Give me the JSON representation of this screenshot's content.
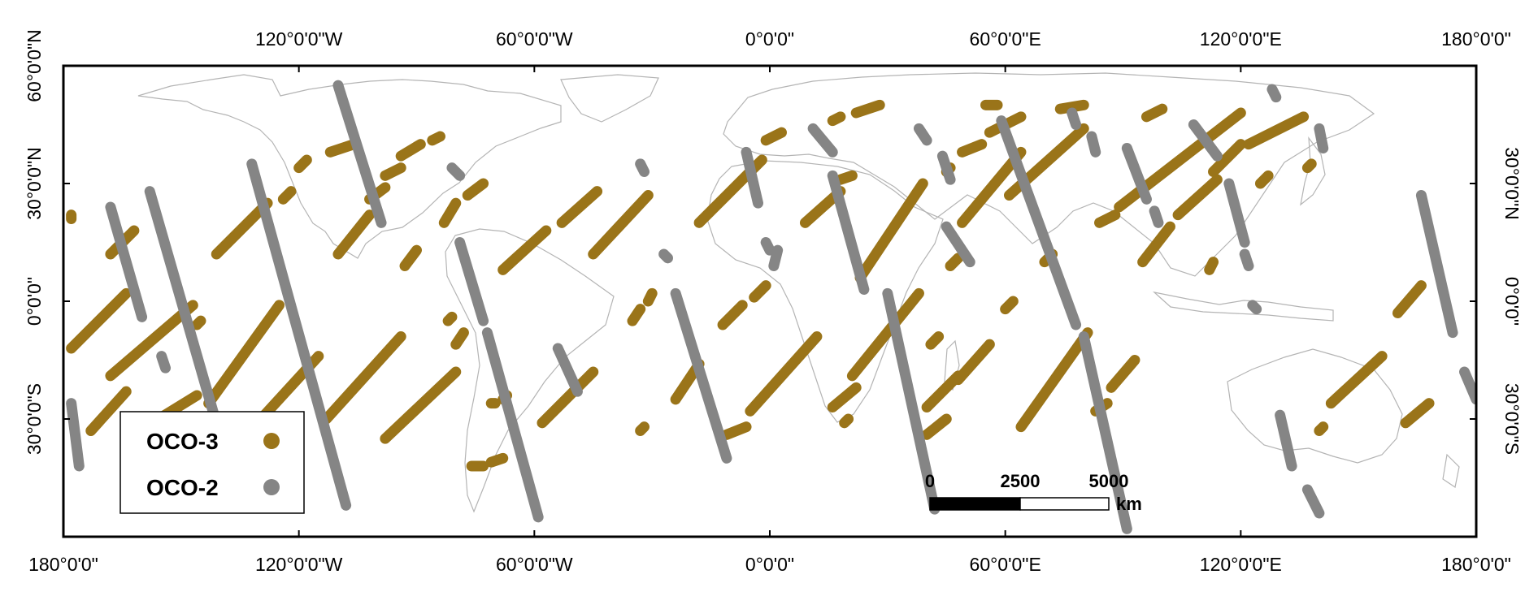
{
  "map": {
    "top_ticks": [
      {
        "lon": -120,
        "label": "120°0'0\"W"
      },
      {
        "lon": -60,
        "label": "60°0'0\"W"
      },
      {
        "lon": 0,
        "label": "0°0'0\""
      },
      {
        "lon": 60,
        "label": "60°0'0\"E"
      },
      {
        "lon": 120,
        "label": "120°0'0\"E"
      },
      {
        "lon": 180,
        "label": "180°0'0\""
      }
    ],
    "bottom_ticks": [
      {
        "lon": -180,
        "label": "180°0'0\""
      },
      {
        "lon": -120,
        "label": "120°0'0\"W"
      },
      {
        "lon": -60,
        "label": "60°0'0\"W"
      },
      {
        "lon": 0,
        "label": "0°0'0\""
      },
      {
        "lon": 60,
        "label": "60°0'0\"E"
      },
      {
        "lon": 120,
        "label": "120°0'0\"E"
      },
      {
        "lon": 180,
        "label": "180°0'0\""
      }
    ],
    "left_ticks": [
      {
        "lat": 60,
        "label": "60°0'0\"N"
      },
      {
        "lat": 30,
        "label": "30°0'0\"N"
      },
      {
        "lat": 0,
        "label": "0°0'0\""
      },
      {
        "lat": -30,
        "label": "30°0'0\"S"
      }
    ],
    "right_ticks": [
      {
        "lat": 30,
        "label": "30°0'0\"N"
      },
      {
        "lat": 0,
        "label": "0°0'0\""
      },
      {
        "lat": -30,
        "label": "30°0'0\"S"
      }
    ],
    "lon_range": [
      -180,
      180
    ],
    "lat_range": [
      -60,
      60
    ],
    "land_outline_color": "#b4b4b4"
  },
  "legend": {
    "items": [
      {
        "label": "OCO-3",
        "color": "#9a7419"
      },
      {
        "label": "OCO-2",
        "color": "#858585"
      }
    ]
  },
  "scale_bar": {
    "labels": [
      "0",
      "2500",
      "5000"
    ],
    "unit": "km"
  },
  "tracks": {
    "oco3": [
      {
        "from": [
          -178,
          -12
        ],
        "to": [
          -164,
          2
        ]
      },
      {
        "from": [
          -178,
          22
        ],
        "to": [
          -178,
          21
        ]
      },
      {
        "from": [
          -173,
          -33
        ],
        "to": [
          -164,
          -23
        ]
      },
      {
        "from": [
          -168,
          12
        ],
        "to": [
          -162,
          18
        ]
      },
      {
        "from": [
          -168,
          -19
        ],
        "to": [
          -147,
          -1
        ]
      },
      {
        "from": [
          -146,
          -6
        ],
        "to": [
          -145,
          -5
        ]
      },
      {
        "from": [
          -159,
          -32
        ],
        "to": [
          -146,
          -24
        ]
      },
      {
        "from": [
          -141,
          12
        ],
        "to": [
          -128,
          25
        ]
      },
      {
        "from": [
          -124,
          26
        ],
        "to": [
          -122,
          28
        ]
      },
      {
        "from": [
          -143,
          -26
        ],
        "to": [
          -125,
          -1
        ]
      },
      {
        "from": [
          -137,
          -38
        ],
        "to": [
          -115,
          -14
        ]
      },
      {
        "from": [
          -120,
          34
        ],
        "to": [
          -118,
          36
        ]
      },
      {
        "from": [
          -112,
          38
        ],
        "to": [
          -106,
          40
        ]
      },
      {
        "from": [
          -113,
          -30
        ],
        "to": [
          -94,
          -9
        ]
      },
      {
        "from": [
          -110,
          12
        ],
        "to": [
          -102,
          22
        ]
      },
      {
        "from": [
          -102,
          26
        ],
        "to": [
          -98,
          29
        ]
      },
      {
        "from": [
          -98,
          32
        ],
        "to": [
          -94,
          34
        ]
      },
      {
        "from": [
          -94,
          37
        ],
        "to": [
          -89,
          40
        ]
      },
      {
        "from": [
          -86,
          41
        ],
        "to": [
          -84,
          42
        ]
      },
      {
        "from": [
          -98,
          -35
        ],
        "to": [
          -80,
          -18
        ]
      },
      {
        "from": [
          -93,
          9
        ],
        "to": [
          -90,
          13
        ]
      },
      {
        "from": [
          -83,
          20
        ],
        "to": [
          -80,
          25
        ]
      },
      {
        "from": [
          -77,
          27
        ],
        "to": [
          -73,
          30
        ]
      },
      {
        "from": [
          -80,
          -11
        ],
        "to": [
          -78,
          -8
        ]
      },
      {
        "from": [
          -82,
          -5
        ],
        "to": [
          -81,
          -4
        ]
      },
      {
        "from": [
          -76,
          -42
        ],
        "to": [
          -73,
          -42
        ]
      },
      {
        "from": [
          -71,
          -41
        ],
        "to": [
          -68,
          -40
        ]
      },
      {
        "from": [
          -68,
          8
        ],
        "to": [
          -57,
          18
        ]
      },
      {
        "from": [
          -53,
          20
        ],
        "to": [
          -44,
          28
        ]
      },
      {
        "from": [
          -68,
          -25
        ],
        "to": [
          -67,
          -24
        ]
      },
      {
        "from": [
          -71,
          -26
        ],
        "to": [
          -70,
          -26
        ]
      },
      {
        "from": [
          -58,
          -31
        ],
        "to": [
          -45,
          -18
        ]
      },
      {
        "from": [
          -45,
          12
        ],
        "to": [
          -31,
          27
        ]
      },
      {
        "from": [
          -35,
          -5
        ],
        "to": [
          -33,
          -2
        ]
      },
      {
        "from": [
          -31,
          0
        ],
        "to": [
          -30,
          2
        ]
      },
      {
        "from": [
          -33,
          -33
        ],
        "to": [
          -32,
          -32
        ]
      },
      {
        "from": [
          -24,
          -25
        ],
        "to": [
          -18,
          -16
        ]
      },
      {
        "from": [
          -18,
          20
        ],
        "to": [
          -2,
          36
        ]
      },
      {
        "from": [
          -1,
          41
        ],
        "to": [
          3,
          43
        ]
      },
      {
        "from": [
          -11,
          -34
        ],
        "to": [
          -6,
          -32
        ]
      },
      {
        "from": [
          -5,
          -28
        ],
        "to": [
          12,
          -9
        ]
      },
      {
        "from": [
          -12,
          -6
        ],
        "to": [
          -7,
          -1
        ]
      },
      {
        "from": [
          -4,
          1
        ],
        "to": [
          -1,
          4
        ]
      },
      {
        "from": [
          9,
          20
        ],
        "to": [
          18,
          28
        ]
      },
      {
        "from": [
          18,
          31
        ],
        "to": [
          21,
          32
        ]
      },
      {
        "from": [
          16,
          46
        ],
        "to": [
          18,
          47
        ]
      },
      {
        "from": [
          22,
          48
        ],
        "to": [
          28,
          50
        ]
      },
      {
        "from": [
          16,
          -27
        ],
        "to": [
          22,
          -22
        ]
      },
      {
        "from": [
          19,
          -31
        ],
        "to": [
          20,
          -30
        ]
      },
      {
        "from": [
          21,
          -19
        ],
        "to": [
          38,
          2
        ]
      },
      {
        "from": [
          23,
          6
        ],
        "to": [
          39,
          30
        ]
      },
      {
        "from": [
          40,
          -34
        ],
        "to": [
          45,
          -30
        ]
      },
      {
        "from": [
          40,
          -27
        ],
        "to": [
          48,
          -19
        ]
      },
      {
        "from": [
          48,
          -20
        ],
        "to": [
          56,
          -11
        ]
      },
      {
        "from": [
          41,
          -11
        ],
        "to": [
          43,
          -9
        ]
      },
      {
        "from": [
          49,
          20
        ],
        "to": [
          64,
          38
        ]
      },
      {
        "from": [
          46,
          9
        ],
        "to": [
          48,
          11
        ]
      },
      {
        "from": [
          45,
          33
        ],
        "to": [
          46,
          34
        ]
      },
      {
        "from": [
          49,
          38
        ],
        "to": [
          54,
          40
        ]
      },
      {
        "from": [
          56,
          43
        ],
        "to": [
          64,
          47
        ]
      },
      {
        "from": [
          60,
          -2
        ],
        "to": [
          62,
          0
        ]
      },
      {
        "from": [
          55,
          50
        ],
        "to": [
          58,
          50
        ]
      },
      {
        "from": [
          64,
          -32
        ],
        "to": [
          81,
          -8
        ]
      },
      {
        "from": [
          61,
          27
        ],
        "to": [
          80,
          44
        ]
      },
      {
        "from": [
          70,
          10
        ],
        "to": [
          72,
          12
        ]
      },
      {
        "from": [
          74,
          49
        ],
        "to": [
          80,
          50
        ]
      },
      {
        "from": [
          83,
          -28
        ],
        "to": [
          86,
          -26
        ]
      },
      {
        "from": [
          87,
          -22
        ],
        "to": [
          93,
          -15
        ]
      },
      {
        "from": [
          84,
          20
        ],
        "to": [
          88,
          22
        ]
      },
      {
        "from": [
          89,
          24
        ],
        "to": [
          120,
          48
        ]
      },
      {
        "from": [
          96,
          47
        ],
        "to": [
          100,
          49
        ]
      },
      {
        "from": [
          95,
          10
        ],
        "to": [
          102,
          19
        ]
      },
      {
        "from": [
          104,
          22
        ],
        "to": [
          114,
          31
        ]
      },
      {
        "from": [
          113,
          33
        ],
        "to": [
          120,
          40
        ]
      },
      {
        "from": [
          112,
          8
        ],
        "to": [
          113,
          10
        ]
      },
      {
        "from": [
          122,
          40
        ],
        "to": [
          136,
          47
        ]
      },
      {
        "from": [
          125,
          30
        ],
        "to": [
          127,
          32
        ]
      },
      {
        "from": [
          137,
          34
        ],
        "to": [
          138,
          35
        ]
      },
      {
        "from": [
          140,
          -33
        ],
        "to": [
          141,
          -32
        ]
      },
      {
        "from": [
          143,
          -26
        ],
        "to": [
          156,
          -14
        ]
      },
      {
        "from": [
          160,
          -3
        ],
        "to": [
          166,
          4
        ]
      },
      {
        "from": [
          162,
          -31
        ],
        "to": [
          168,
          -26
        ]
      }
    ],
    "oco2": [
      {
        "from": [
          -178,
          -26
        ],
        "to": [
          -176,
          -42
        ]
      },
      {
        "from": [
          -168,
          24
        ],
        "to": [
          -160,
          -4
        ]
      },
      {
        "from": [
          -155,
          -14
        ],
        "to": [
          -154,
          -17
        ]
      },
      {
        "from": [
          -158,
          28
        ],
        "to": [
          -135,
          -52
        ]
      },
      {
        "from": [
          -132,
          35
        ],
        "to": [
          -108,
          -52
        ]
      },
      {
        "from": [
          -110,
          55
        ],
        "to": [
          -99,
          20
        ]
      },
      {
        "from": [
          -81,
          34
        ],
        "to": [
          -79,
          32
        ]
      },
      {
        "from": [
          -79,
          15
        ],
        "to": [
          -73,
          -5
        ]
      },
      {
        "from": [
          -72,
          -8
        ],
        "to": [
          -59,
          -55
        ]
      },
      {
        "from": [
          -54,
          -12
        ],
        "to": [
          -49,
          -23
        ]
      },
      {
        "from": [
          -33,
          35
        ],
        "to": [
          -32,
          33
        ]
      },
      {
        "from": [
          -27,
          12
        ],
        "to": [
          -26,
          11
        ]
      },
      {
        "from": [
          -24,
          2
        ],
        "to": [
          -11,
          -40
        ]
      },
      {
        "from": [
          -6,
          38
        ],
        "to": [
          -3,
          25
        ]
      },
      {
        "from": [
          -1,
          15
        ],
        "to": [
          0,
          13
        ]
      },
      {
        "from": [
          2,
          13
        ],
        "to": [
          1,
          9
        ]
      },
      {
        "from": [
          11,
          44
        ],
        "to": [
          16,
          38
        ]
      },
      {
        "from": [
          16,
          32
        ],
        "to": [
          24,
          3
        ]
      },
      {
        "from": [
          38,
          44
        ],
        "to": [
          40,
          41
        ]
      },
      {
        "from": [
          44,
          37
        ],
        "to": [
          46,
          31
        ]
      },
      {
        "from": [
          45,
          19
        ],
        "to": [
          51,
          10
        ]
      },
      {
        "from": [
          30,
          2
        ],
        "to": [
          42,
          -53
        ]
      },
      {
        "from": [
          59,
          46
        ],
        "to": [
          78,
          -6
        ]
      },
      {
        "from": [
          80,
          -9
        ],
        "to": [
          91,
          -58
        ]
      },
      {
        "from": [
          77,
          48
        ],
        "to": [
          78,
          45
        ]
      },
      {
        "from": [
          82,
          42
        ],
        "to": [
          83,
          38
        ]
      },
      {
        "from": [
          91,
          39
        ],
        "to": [
          96,
          26
        ]
      },
      {
        "from": [
          98,
          23
        ],
        "to": [
          99,
          20
        ]
      },
      {
        "from": [
          108,
          45
        ],
        "to": [
          114,
          37
        ]
      },
      {
        "from": [
          117,
          30
        ],
        "to": [
          121,
          15
        ]
      },
      {
        "from": [
          121,
          12
        ],
        "to": [
          122,
          9
        ]
      },
      {
        "from": [
          123,
          -1
        ],
        "to": [
          124,
          -2
        ]
      },
      {
        "from": [
          128,
          54
        ],
        "to": [
          129,
          52
        ]
      },
      {
        "from": [
          140,
          44
        ],
        "to": [
          141,
          39
        ]
      },
      {
        "from": [
          130,
          -29
        ],
        "to": [
          133,
          -42
        ]
      },
      {
        "from": [
          137,
          -48
        ],
        "to": [
          140,
          -54
        ]
      },
      {
        "from": [
          166,
          27
        ],
        "to": [
          174,
          -8
        ]
      },
      {
        "from": [
          177,
          -18
        ],
        "to": [
          180,
          -25
        ]
      }
    ]
  }
}
